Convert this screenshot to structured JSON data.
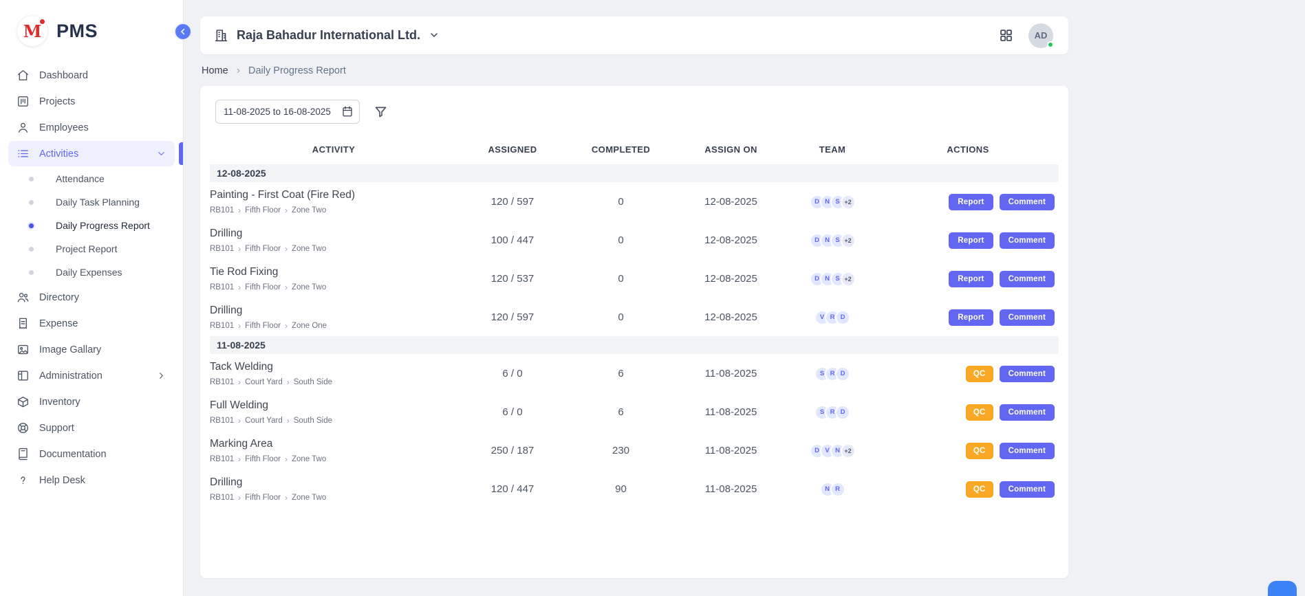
{
  "brand": {
    "app_name": "PMS",
    "logo_letter": "M"
  },
  "sidebar": {
    "items": [
      {
        "label": "Dashboard",
        "icon": "home-icon"
      },
      {
        "label": "Projects",
        "icon": "projects-icon"
      },
      {
        "label": "Employees",
        "icon": "employee-icon"
      },
      {
        "label": "Activities",
        "icon": "activities-icon",
        "active": true,
        "expanded": true,
        "children": [
          {
            "label": "Attendance"
          },
          {
            "label": "Daily Task Planning"
          },
          {
            "label": "Daily Progress Report",
            "active": true
          },
          {
            "label": "Project Report"
          },
          {
            "label": "Daily Expenses"
          }
        ]
      },
      {
        "label": "Directory",
        "icon": "directory-icon"
      },
      {
        "label": "Expense",
        "icon": "expense-icon"
      },
      {
        "label": "Image Gallary",
        "icon": "gallery-icon"
      },
      {
        "label": "Administration",
        "icon": "administration-icon",
        "has_submenu": true
      },
      {
        "label": "Inventory",
        "icon": "inventory-icon"
      },
      {
        "label": "Support",
        "icon": "support-icon"
      },
      {
        "label": "Documentation",
        "icon": "documentation-icon"
      },
      {
        "label": "Help Desk",
        "icon": "helpdesk-icon"
      }
    ]
  },
  "topbar": {
    "company_name": "Raja Bahadur International Ltd.",
    "avatar_initials": "AD"
  },
  "breadcrumb": {
    "items": [
      "Home",
      "Daily Progress Report"
    ]
  },
  "filters": {
    "date_range": "11-08-2025 to 16-08-2025"
  },
  "table": {
    "columns": [
      "ACTIVITY",
      "ASSIGNED",
      "COMPLETED",
      "ASSIGN ON",
      "TEAM",
      "ACTIONS"
    ],
    "groups": [
      {
        "date": "12-08-2025",
        "rows": [
          {
            "activity": "Painting - First Coat (Fire Red)",
            "path": [
              "RB101",
              "Fifth Floor",
              "Zone Two"
            ],
            "assigned": "120 / 597",
            "completed": "0",
            "assign_on": "12-08-2025",
            "team": [
              "D",
              "N",
              "S"
            ],
            "team_extra": "+2",
            "actions": [
              {
                "label": "Report",
                "type": "report"
              },
              {
                "label": "Comment",
                "type": "comment"
              }
            ]
          },
          {
            "activity": "Drilling",
            "path": [
              "RB101",
              "Fifth Floor",
              "Zone Two"
            ],
            "assigned": "100 / 447",
            "completed": "0",
            "assign_on": "12-08-2025",
            "team": [
              "D",
              "N",
              "S"
            ],
            "team_extra": "+2",
            "actions": [
              {
                "label": "Report",
                "type": "report"
              },
              {
                "label": "Comment",
                "type": "comment"
              }
            ]
          },
          {
            "activity": "Tie Rod Fixing",
            "path": [
              "RB101",
              "Fifth Floor",
              "Zone Two"
            ],
            "assigned": "120 / 537",
            "completed": "0",
            "assign_on": "12-08-2025",
            "team": [
              "D",
              "N",
              "S"
            ],
            "team_extra": "+2",
            "actions": [
              {
                "label": "Report",
                "type": "report"
              },
              {
                "label": "Comment",
                "type": "comment"
              }
            ]
          },
          {
            "activity": "Drilling",
            "path": [
              "RB101",
              "Fifth Floor",
              "Zone One"
            ],
            "assigned": "120 / 597",
            "completed": "0",
            "assign_on": "12-08-2025",
            "team": [
              "V",
              "R",
              "D"
            ],
            "team_extra": null,
            "actions": [
              {
                "label": "Report",
                "type": "report"
              },
              {
                "label": "Comment",
                "type": "comment"
              }
            ]
          }
        ]
      },
      {
        "date": "11-08-2025",
        "rows": [
          {
            "activity": "Tack Welding",
            "path": [
              "RB101",
              "Court Yard",
              "South Side"
            ],
            "assigned": "6 / 0",
            "completed": "6",
            "assign_on": "11-08-2025",
            "team": [
              "S",
              "R",
              "D"
            ],
            "team_extra": null,
            "actions": [
              {
                "label": "QC",
                "type": "qc"
              },
              {
                "label": "Comment",
                "type": "comment"
              }
            ]
          },
          {
            "activity": "Full Welding",
            "path": [
              "RB101",
              "Court Yard",
              "South Side"
            ],
            "assigned": "6 / 0",
            "completed": "6",
            "assign_on": "11-08-2025",
            "team": [
              "S",
              "R",
              "D"
            ],
            "team_extra": null,
            "actions": [
              {
                "label": "QC",
                "type": "qc"
              },
              {
                "label": "Comment",
                "type": "comment"
              }
            ]
          },
          {
            "activity": "Marking Area",
            "path": [
              "RB101",
              "Fifth Floor",
              "Zone Two"
            ],
            "assigned": "250 / 187",
            "completed": "230",
            "assign_on": "11-08-2025",
            "team": [
              "D",
              "V",
              "N"
            ],
            "team_extra": "+2",
            "actions": [
              {
                "label": "QC",
                "type": "qc"
              },
              {
                "label": "Comment",
                "type": "comment"
              }
            ]
          },
          {
            "activity": "Drilling",
            "path": [
              "RB101",
              "Fifth Floor",
              "Zone Two"
            ],
            "assigned": "120 / 447",
            "completed": "90",
            "assign_on": "11-08-2025",
            "team": [
              "N",
              "R"
            ],
            "team_extra": null,
            "actions": [
              {
                "label": "QC",
                "type": "qc"
              },
              {
                "label": "Comment",
                "type": "comment"
              }
            ]
          }
        ]
      }
    ]
  },
  "colors": {
    "accent": "#6366f1",
    "active_bg": "#eef0fe",
    "qc": "#f9a825",
    "avatar_bg": "#e0e7ff",
    "green": "#22c55e",
    "collapse": "#5b78f6"
  }
}
